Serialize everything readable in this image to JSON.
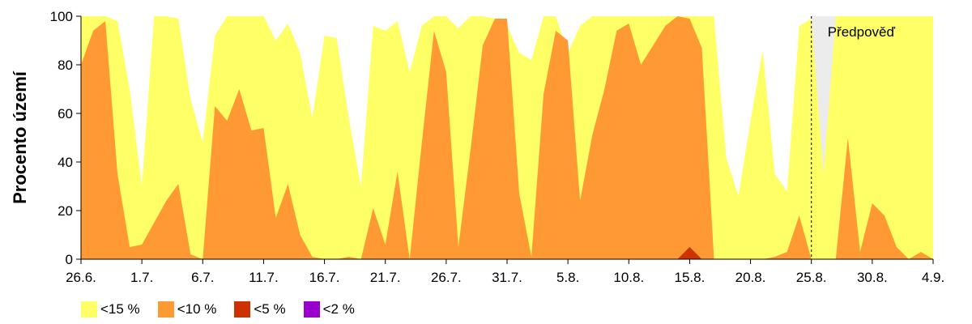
{
  "chart_data": {
    "type": "area",
    "ylabel": "Procento území",
    "ylim": [
      0,
      100
    ],
    "yticks": [
      0,
      20,
      40,
      60,
      80,
      100
    ],
    "xlim": [
      "2023-06-26",
      "2023-09-04"
    ],
    "x_ticks": [
      {
        "date": "2023-06-26",
        "label": "26.6."
      },
      {
        "date": "2023-07-01",
        "label": "1.7."
      },
      {
        "date": "2023-07-06",
        "label": "6.7."
      },
      {
        "date": "2023-07-11",
        "label": "11.7."
      },
      {
        "date": "2023-07-16",
        "label": "16.7."
      },
      {
        "date": "2023-07-21",
        "label": "21.7."
      },
      {
        "date": "2023-07-26",
        "label": "26.7."
      },
      {
        "date": "2023-07-31",
        "label": "31.7."
      },
      {
        "date": "2023-08-05",
        "label": "5.8."
      },
      {
        "date": "2023-08-10",
        "label": "10.8."
      },
      {
        "date": "2023-08-15",
        "label": "15.8."
      },
      {
        "date": "2023-08-20",
        "label": "20.8."
      },
      {
        "date": "2023-08-25",
        "label": "25.8."
      },
      {
        "date": "2023-08-30",
        "label": "30.8."
      },
      {
        "date": "2023-09-04",
        "label": "4.9."
      }
    ],
    "forecast": {
      "from": "2023-08-25",
      "to": "2023-09-04",
      "label": "Předpověď",
      "color": "#ececec"
    },
    "x": [
      "2023-06-26",
      "2023-06-27",
      "2023-06-28",
      "2023-06-29",
      "2023-06-30",
      "2023-07-01",
      "2023-07-02",
      "2023-07-03",
      "2023-07-04",
      "2023-07-05",
      "2023-07-06",
      "2023-07-07",
      "2023-07-08",
      "2023-07-09",
      "2023-07-10",
      "2023-07-11",
      "2023-07-12",
      "2023-07-13",
      "2023-07-14",
      "2023-07-15",
      "2023-07-16",
      "2023-07-17",
      "2023-07-18",
      "2023-07-19",
      "2023-07-20",
      "2023-07-21",
      "2023-07-22",
      "2023-07-23",
      "2023-07-24",
      "2023-07-25",
      "2023-07-26",
      "2023-07-27",
      "2023-07-28",
      "2023-07-29",
      "2023-07-30",
      "2023-07-31",
      "2023-08-01",
      "2023-08-02",
      "2023-08-03",
      "2023-08-04",
      "2023-08-05",
      "2023-08-06",
      "2023-08-07",
      "2023-08-08",
      "2023-08-09",
      "2023-08-10",
      "2023-08-11",
      "2023-08-12",
      "2023-08-13",
      "2023-08-14",
      "2023-08-15",
      "2023-08-16",
      "2023-08-17",
      "2023-08-18",
      "2023-08-19",
      "2023-08-20",
      "2023-08-21",
      "2023-08-22",
      "2023-08-23",
      "2023-08-24",
      "2023-08-25",
      "2023-08-26",
      "2023-08-27",
      "2023-08-28",
      "2023-08-29",
      "2023-08-30",
      "2023-08-31",
      "2023-09-01",
      "2023-09-02",
      "2023-09-03",
      "2023-09-04"
    ],
    "series": [
      {
        "name": "<15 %",
        "color": "#ffff66",
        "values": [
          100,
          100,
          100,
          98,
          70,
          30,
          100,
          100,
          99,
          66,
          48,
          92,
          100,
          100,
          100,
          100,
          90,
          97,
          85,
          58,
          92,
          91,
          58,
          30,
          96,
          94,
          98,
          77,
          96,
          100,
          100,
          95,
          100,
          100,
          99,
          96,
          85,
          82,
          100,
          100,
          85,
          96,
          100,
          100,
          100,
          100,
          100,
          100,
          100,
          100,
          100,
          100,
          100,
          42,
          26,
          57,
          86,
          35,
          28,
          96,
          99,
          35,
          100,
          100,
          100,
          100,
          100,
          100,
          100,
          100,
          100
        ]
      },
      {
        "name": "<10 %",
        "color": "#ff9933",
        "values": [
          80,
          94,
          98,
          35,
          5,
          6,
          15,
          24,
          31,
          2,
          0,
          63,
          57,
          70,
          53,
          54,
          17,
          31,
          10,
          1,
          0,
          0,
          1,
          0,
          21,
          6,
          36,
          0,
          48,
          94,
          77,
          5,
          45,
          88,
          99,
          99,
          27,
          1,
          68,
          94,
          90,
          24,
          51,
          70,
          94,
          97,
          80,
          88,
          96,
          100,
          99,
          87,
          0,
          0,
          0,
          0,
          0,
          1,
          3,
          18,
          0,
          0,
          0,
          50,
          3,
          23,
          18,
          5,
          0,
          3,
          0
        ]
      },
      {
        "name": "<5 %",
        "color": "#cc3300",
        "values": [
          0,
          0,
          0,
          0,
          0,
          0,
          0,
          0,
          0,
          0,
          0,
          0,
          0,
          0,
          0,
          0,
          0,
          0,
          0,
          0,
          0,
          0,
          0,
          0,
          0,
          0,
          0,
          0,
          0,
          0,
          0,
          0,
          0,
          0,
          0,
          0,
          0,
          0,
          0,
          0,
          0,
          0,
          0,
          0,
          0,
          0,
          0,
          0,
          0,
          0,
          5,
          0,
          0,
          0,
          0,
          0,
          0,
          0,
          0,
          0,
          0,
          0,
          0,
          0,
          0,
          0,
          0,
          0,
          0,
          0,
          0
        ]
      },
      {
        "name": "<2 %",
        "color": "#9900cc",
        "values": [
          0,
          0,
          0,
          0,
          0,
          0,
          0,
          0,
          0,
          0,
          0,
          0,
          0,
          0,
          0,
          0,
          0,
          0,
          0,
          0,
          0,
          0,
          0,
          0,
          0,
          0,
          0,
          0,
          0,
          0,
          0,
          0,
          0,
          0,
          0,
          0,
          0,
          0,
          0,
          0,
          0,
          0,
          0,
          0,
          0,
          0,
          0,
          0,
          0,
          0,
          0,
          0,
          0,
          0,
          0,
          0,
          0,
          0,
          0,
          0,
          0,
          0,
          0,
          0,
          0,
          0,
          0,
          0,
          0,
          0,
          0
        ]
      }
    ]
  }
}
